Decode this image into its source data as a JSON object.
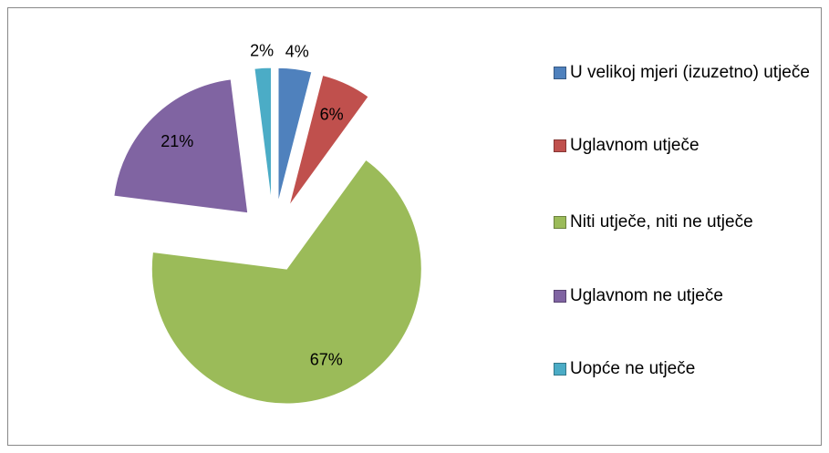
{
  "chart_data": {
    "type": "pie",
    "categories": [
      "U velikoj mjeri (izuzetno) utječe",
      "Uglavnom utječe",
      "Niti utječe, niti ne utječe",
      "Uglavnom ne utječe",
      "Uopće ne utječe"
    ],
    "values": [
      4,
      6,
      67,
      21,
      2
    ],
    "value_labels": [
      "4%",
      "6%",
      "67%",
      "21%",
      "2%"
    ],
    "colors": [
      "#4f81bd",
      "#c0504d",
      "#9bbb59",
      "#8064a2",
      "#4bacc6"
    ],
    "legend": "right"
  }
}
